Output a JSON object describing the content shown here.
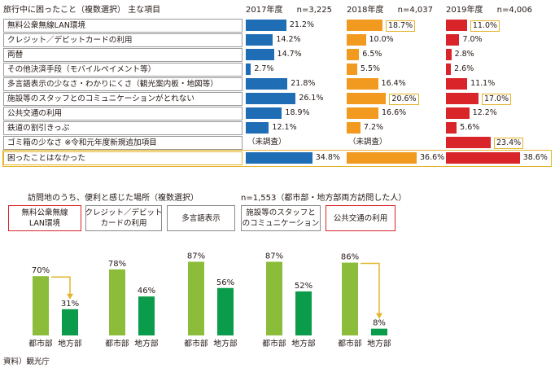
{
  "chart_data": [
    {
      "type": "bar",
      "title": "旅行中に困ったこと（複数選択） 主な項目",
      "categories": [
        "無料公衆無線LAN環境",
        "クレジット／デビットカードの利用",
        "両替",
        "その他決済手段（モバイルペイメント等）",
        "多言語表示の少なさ・わかりにくさ（観光案内板・地図等）",
        "施設等のスタッフとのコミュニケーションがとれない",
        "公共交通の利用",
        "鉄道の割引きっぷ",
        "ゴミ箱の少なさ ※令和元年度新規追加項目",
        "困ったことはなかった"
      ],
      "series": [
        {
          "name": "2017年度",
          "n_label": "n=3,225",
          "color": "#1f6db5",
          "values": [
            21.2,
            14.2,
            14.7,
            2.7,
            21.8,
            26.1,
            18.9,
            12.1,
            null,
            34.8
          ],
          "labels": [
            "21.2%",
            "14.2%",
            "14.7%",
            "2.7%",
            "21.8%",
            "26.1%",
            "18.9%",
            "12.1%",
            "（未調査）",
            "34.8%"
          ]
        },
        {
          "name": "2018年度",
          "n_label": "n=4,037",
          "color": "#f29a1f",
          "values": [
            18.7,
            10.0,
            6.5,
            5.5,
            16.4,
            20.6,
            16.6,
            7.2,
            null,
            36.6
          ],
          "labels": [
            "18.7%",
            "10.0%",
            "6.5%",
            "5.5%",
            "16.4%",
            "20.6%",
            "16.6%",
            "7.2%",
            "（未調査）",
            "36.6%"
          ]
        },
        {
          "name": "2019年度",
          "n_label": "n=4,006",
          "color": "#d9242a",
          "values": [
            11.0,
            7.0,
            2.8,
            2.6,
            11.1,
            17.0,
            12.2,
            5.6,
            23.4,
            38.6
          ],
          "labels": [
            "11.0%",
            "7.0%",
            "2.8%",
            "2.6%",
            "11.1%",
            "17.0%",
            "12.2%",
            "5.6%",
            "23.4%",
            "38.6%"
          ]
        }
      ],
      "boxed_values": [
        [
          0,
          1
        ],
        [
          5,
          1
        ],
        [
          0,
          2
        ],
        [
          5,
          2
        ],
        [
          8,
          2
        ]
      ],
      "highlighted_row": 9,
      "xlim": [
        0,
        40
      ]
    },
    {
      "type": "bar",
      "title": "訪問地のうち、便利と感じた場所（複数選択）",
      "note": "n=1,553（都市部・地方部両方訪問した人）",
      "groups": [
        {
          "label": "無料公衆無線\nLAN環境",
          "border": "red",
          "values": [
            70,
            31
          ],
          "labels": [
            "70%",
            "31%"
          ],
          "arrow": true
        },
        {
          "label": "クレジット／デビット\nカードの利用",
          "border": "gray",
          "values": [
            78,
            46
          ],
          "labels": [
            "78%",
            "46%"
          ],
          "arrow": false
        },
        {
          "label": "多言語表示",
          "border": "gray",
          "values": [
            87,
            56
          ],
          "labels": [
            "87%",
            "56%"
          ],
          "arrow": false
        },
        {
          "label": "施設等のスタッフと\nのコミュニケーション",
          "border": "gray",
          "values": [
            87,
            52
          ],
          "labels": [
            "87%",
            "52%"
          ],
          "arrow": false
        },
        {
          "label": "公共交通の利用",
          "border": "red",
          "values": [
            86,
            8
          ],
          "labels": [
            "86%",
            "8%"
          ],
          "arrow": true
        }
      ],
      "series": [
        {
          "name": "都市部",
          "color": "#8cbd3a"
        },
        {
          "name": "地方部",
          "color": "#0a9c4a"
        }
      ],
      "ylim": [
        0,
        100
      ]
    }
  ],
  "source": "資料）観光庁"
}
